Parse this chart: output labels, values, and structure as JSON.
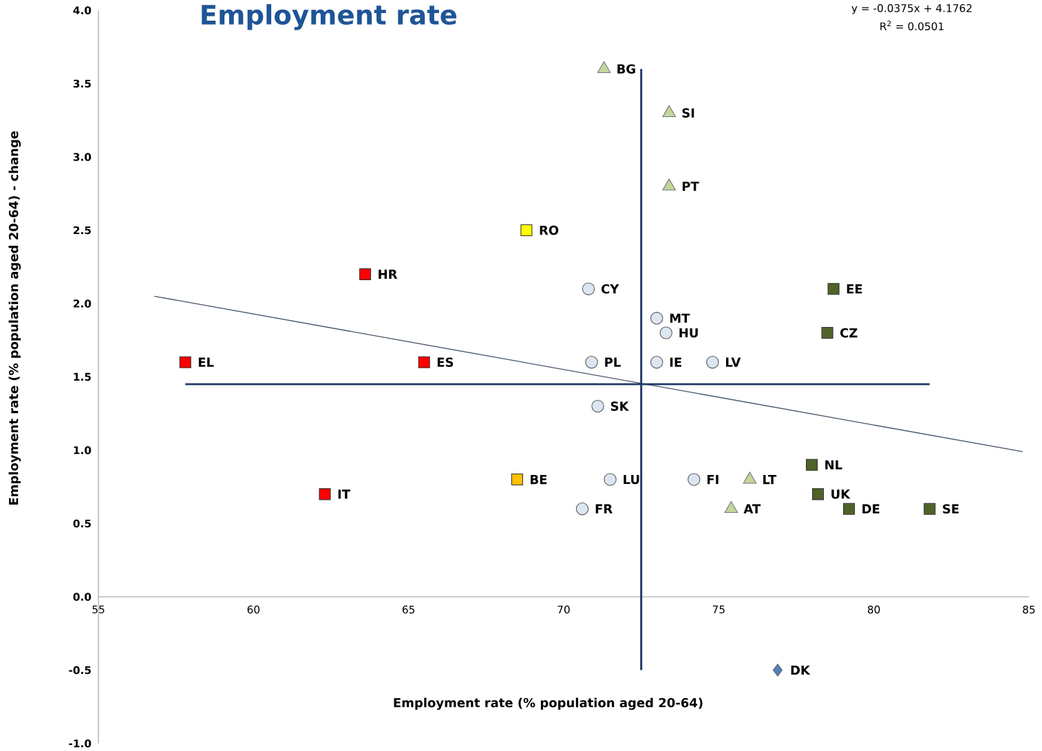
{
  "chart_data": {
    "type": "scatter",
    "title": "Employment rate",
    "xlabel": "Employment rate (% population aged 20-64)",
    "ylabel": "Employment rate (% population aged 20-64) - change",
    "xlim": [
      55,
      85
    ],
    "xticks": [
      55,
      60,
      65,
      70,
      75,
      80,
      85
    ],
    "ylim": [
      -1,
      4
    ],
    "yticks": [
      {
        "value": -1,
        "label": "-1.0"
      },
      {
        "value": -0.5,
        "label": "-0.5"
      },
      {
        "value": 0,
        "label": "0.0"
      },
      {
        "value": 0.5,
        "label": "0.5"
      },
      {
        "value": 1,
        "label": "1.0"
      },
      {
        "value": 1.5,
        "label": "1.5"
      },
      {
        "value": 2,
        "label": "2.0"
      },
      {
        "value": 2.5,
        "label": "2.5"
      },
      {
        "value": 3,
        "label": "3.0"
      },
      {
        "value": 3.5,
        "label": "3.5"
      },
      {
        "value": 4,
        "label": "4.0"
      }
    ],
    "series": [
      {
        "color": "#ff0000",
        "marker": "square",
        "x": [
          57.8,
          65.5,
          63.6,
          62.3
        ],
        "values": [
          1.6,
          1.6,
          2.2,
          0.7
        ]
      },
      {
        "color": "#ffff00",
        "marker": "square",
        "x": [
          68.8
        ],
        "values": [
          2.5
        ]
      },
      {
        "color": "#ffc000",
        "marker": "square",
        "x": [
          68.5
        ],
        "values": [
          0.8
        ]
      },
      {
        "color": "#dce6f2",
        "marker": "circle",
        "x": [
          70.8,
          73.0,
          73.3,
          70.9,
          73.0,
          74.8,
          71.1,
          71.5,
          74.2,
          70.6
        ],
        "values": [
          2.1,
          1.9,
          1.8,
          1.6,
          1.6,
          1.6,
          1.3,
          0.8,
          0.8,
          0.6
        ]
      },
      {
        "color": "#c3d69b",
        "marker": "triangle",
        "x": [
          71.3,
          73.4,
          73.4,
          76.0,
          75.4
        ],
        "values": [
          3.6,
          3.3,
          2.8,
          0.8,
          0.6
        ]
      },
      {
        "color": "#4f6228",
        "marker": "square",
        "x": [
          78.7,
          78.5,
          78.0,
          78.2,
          79.2,
          81.8
        ],
        "values": [
          2.1,
          1.8,
          0.9,
          0.7,
          0.6,
          0.6
        ]
      },
      {
        "color": "#4f81bd",
        "marker": "diamond",
        "x": [
          76.9
        ],
        "values": [
          -0.5
        ]
      },
      {
        "type": "line",
        "color": "#44546a",
        "marker": "none",
        "x": [
          56.8,
          84.8
        ],
        "values": [
          2.05,
          0.99
        ]
      }
    ],
    "ref_lines": [
      {
        "axis": "x",
        "value": 72.5,
        "color": "#1f3864"
      },
      {
        "axis": "y",
        "value": 1.45,
        "color": "#1f3864"
      }
    ],
    "annotations": [
      "y = -0.0375x + 4.1762",
      "R$^{2}$ = 0.0501",
      {
        "text": "EL",
        "x": 57.8,
        "y": 1.6
      },
      {
        "text": "ES",
        "x": 65.5,
        "y": 1.6
      },
      {
        "text": "HR",
        "x": 63.6,
        "y": 2.2
      },
      {
        "text": "IT",
        "x": 62.3,
        "y": 0.7
      },
      {
        "text": "RO",
        "x": 68.8,
        "y": 2.5
      },
      {
        "text": "BE",
        "x": 68.5,
        "y": 0.8
      },
      {
        "text": "CY",
        "x": 70.8,
        "y": 2.1
      },
      {
        "text": "MT",
        "x": 73.0,
        "y": 1.9
      },
      {
        "text": "HU",
        "x": 73.3,
        "y": 1.8
      },
      {
        "text": "PL",
        "x": 70.9,
        "y": 1.6
      },
      {
        "text": "IE",
        "x": 73.0,
        "y": 1.6
      },
      {
        "text": "LV",
        "x": 74.8,
        "y": 1.6
      },
      {
        "text": "SK",
        "x": 71.1,
        "y": 1.3
      },
      {
        "text": "LU",
        "x": 71.5,
        "y": 0.8
      },
      {
        "text": "FI",
        "x": 74.2,
        "y": 0.8
      },
      {
        "text": "FR",
        "x": 70.6,
        "y": 0.6
      },
      {
        "text": "BG",
        "x": 71.3,
        "y": 3.6
      },
      {
        "text": "SI",
        "x": 73.4,
        "y": 3.3
      },
      {
        "text": "PT",
        "x": 73.4,
        "y": 2.8
      },
      {
        "text": "LT",
        "x": 76.0,
        "y": 0.8
      },
      {
        "text": "AT",
        "x": 75.4,
        "y": 0.6
      },
      {
        "text": "EE",
        "x": 78.7,
        "y": 2.1
      },
      {
        "text": "CZ",
        "x": 78.5,
        "y": 1.8
      },
      {
        "text": "NL",
        "x": 78.0,
        "y": 0.9
      },
      {
        "text": "UK",
        "x": 78.2,
        "y": 0.7
      },
      {
        "text": "DE",
        "x": 79.2,
        "y": 0.6
      },
      {
        "text": "SE",
        "x": 81.8,
        "y": 0.6
      },
      {
        "text": "DK",
        "x": 76.9,
        "y": -0.5
      }
    ]
  }
}
